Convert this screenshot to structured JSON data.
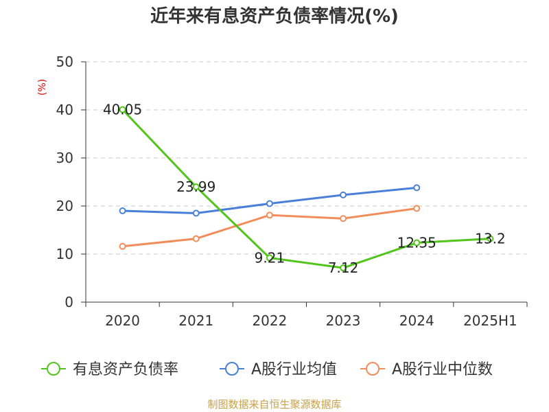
{
  "chart_data": {
    "type": "line",
    "title": "近年来有息资产负债率情况(%)",
    "ylabel": "(%)",
    "xlabel": "",
    "categories": [
      "2020",
      "2021",
      "2022",
      "2023",
      "2024",
      "2025H1"
    ],
    "ylim": [
      0,
      50
    ],
    "yticks": [
      "0",
      "10",
      "20",
      "30",
      "40",
      "50"
    ],
    "grid": true,
    "legend_position": "bottom",
    "series": [
      {
        "name": "有息资产负债率",
        "color": "#52c41a",
        "values": [
          40.05,
          23.99,
          9.21,
          7.12,
          12.35,
          13.2
        ],
        "labels": [
          "40.05",
          "23.99",
          "9.21",
          "7.12",
          "12.35",
          "13.2"
        ]
      },
      {
        "name": "A股行业均值",
        "color": "#4a7fd9",
        "values": [
          19.0,
          18.5,
          20.5,
          22.3,
          23.8,
          null
        ]
      },
      {
        "name": "A股行业中位数",
        "color": "#f28c5a",
        "values": [
          11.6,
          13.2,
          18.1,
          17.4,
          19.5,
          null
        ]
      }
    ],
    "source": "制图数据来自恒生聚源数据库"
  }
}
